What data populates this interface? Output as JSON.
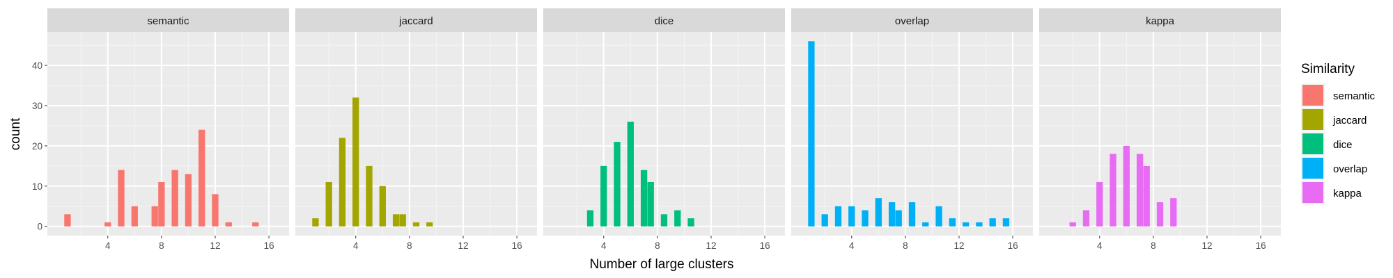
{
  "chart_data": {
    "type": "bar",
    "xlabel": "Number of large clusters",
    "ylabel": "count",
    "xlim": [
      -0.5,
      17.5
    ],
    "ylim": [
      -2.3,
      48.3
    ],
    "x_ticks": [
      4,
      8,
      12,
      16
    ],
    "y_ticks": [
      0,
      10,
      20,
      30,
      40
    ],
    "grid": true,
    "legend": {
      "title": "Similarity",
      "placement": "right",
      "entries": [
        "semantic",
        "jaccard",
        "dice",
        "overlap",
        "kappa"
      ]
    },
    "facets": [
      {
        "name": "semantic",
        "color": "#F8766D",
        "points": [
          [
            1,
            3
          ],
          [
            4,
            1
          ],
          [
            5,
            14
          ],
          [
            6,
            5
          ],
          [
            7.5,
            5
          ],
          [
            8,
            11
          ],
          [
            9,
            14
          ],
          [
            10,
            13
          ],
          [
            11,
            24
          ],
          [
            12,
            8
          ],
          [
            13,
            1
          ],
          [
            15,
            1
          ]
        ]
      },
      {
        "name": "jaccard",
        "color": "#A3A500",
        "points": [
          [
            1,
            2
          ],
          [
            2,
            11
          ],
          [
            3,
            22
          ],
          [
            4,
            32
          ],
          [
            5,
            15
          ],
          [
            6,
            10
          ],
          [
            7,
            3
          ],
          [
            7.5,
            3
          ],
          [
            8.5,
            1
          ],
          [
            9.5,
            1
          ]
        ]
      },
      {
        "name": "dice",
        "color": "#00BF7D",
        "points": [
          [
            3,
            4
          ],
          [
            4,
            15
          ],
          [
            5,
            21
          ],
          [
            6,
            26
          ],
          [
            7,
            14
          ],
          [
            7.5,
            11
          ],
          [
            8.5,
            3
          ],
          [
            9.5,
            4
          ],
          [
            10.5,
            2
          ]
        ]
      },
      {
        "name": "overlap",
        "color": "#00B0F6",
        "points": [
          [
            1,
            46
          ],
          [
            2,
            3
          ],
          [
            3,
            5
          ],
          [
            4,
            5
          ],
          [
            5,
            4
          ],
          [
            6,
            7
          ],
          [
            7,
            6
          ],
          [
            7.5,
            4
          ],
          [
            8.5,
            6
          ],
          [
            9.5,
            1
          ],
          [
            10.5,
            5
          ],
          [
            11.5,
            2
          ],
          [
            12.5,
            1
          ],
          [
            13.5,
            1
          ],
          [
            14.5,
            2
          ],
          [
            15.5,
            2
          ]
        ]
      },
      {
        "name": "kappa",
        "color": "#E76BF3",
        "points": [
          [
            2,
            1
          ],
          [
            3,
            4
          ],
          [
            4,
            11
          ],
          [
            5,
            18
          ],
          [
            6,
            20
          ],
          [
            7,
            18
          ],
          [
            7.5,
            15
          ],
          [
            8.5,
            6
          ],
          [
            9.5,
            7
          ]
        ]
      }
    ]
  }
}
